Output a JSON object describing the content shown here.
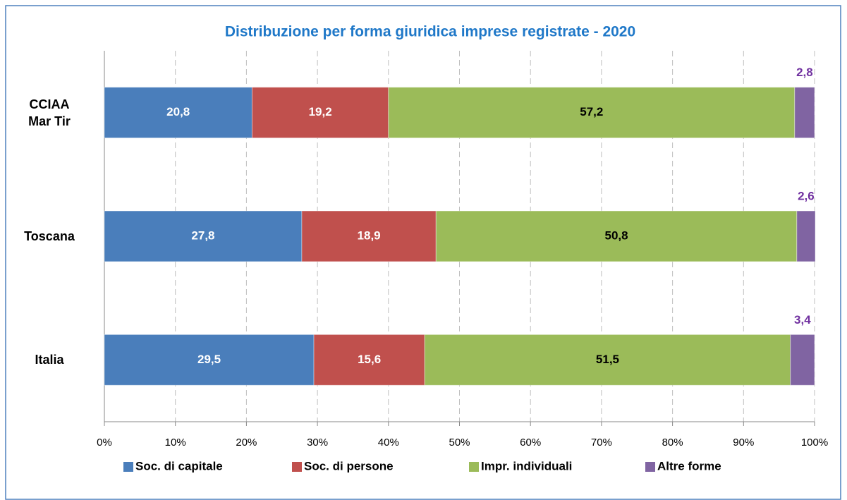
{
  "chart_data": {
    "type": "stacked_bar_horizontal",
    "title": "Distribuzione per forma giuridica imprese registrate - 2020",
    "categories": [
      "CCIAA\nMar Tir",
      "Toscana",
      "Italia"
    ],
    "series": [
      {
        "name": "Soc. di capitale",
        "color": "#4a7ebb",
        "label_color": "#ffffff",
        "values": [
          20.8,
          27.8,
          29.5
        ],
        "value_labels": [
          "20,8",
          "27,8",
          "29,5"
        ]
      },
      {
        "name": "Soc. di persone",
        "color": "#c0504d",
        "label_color": "#ffffff",
        "values": [
          19.2,
          18.9,
          15.6
        ],
        "value_labels": [
          "19,2",
          "18,9",
          "15,6"
        ]
      },
      {
        "name": "Impr. individuali",
        "color": "#9bbb59",
        "label_color": "#000000",
        "values": [
          57.2,
          50.8,
          51.5
        ],
        "value_labels": [
          "57,2",
          "50,8",
          "51,5"
        ]
      },
      {
        "name": "Altre forme",
        "color": "#8064a2",
        "label_color": "#7030a0",
        "values": [
          2.8,
          2.6,
          3.4
        ],
        "value_labels": [
          "2,8",
          "2,6",
          "3,4"
        ]
      }
    ],
    "xlim": [
      0,
      100
    ],
    "xticks": [
      {
        "value": 0,
        "label": "0%"
      },
      {
        "value": 10,
        "label": "10%"
      },
      {
        "value": 20,
        "label": "20%"
      },
      {
        "value": 30,
        "label": "30%"
      },
      {
        "value": 40,
        "label": "40%"
      },
      {
        "value": 50,
        "label": "50%"
      },
      {
        "value": 60,
        "label": "60%"
      },
      {
        "value": 70,
        "label": "70%"
      },
      {
        "value": 80,
        "label": "80%"
      },
      {
        "value": 90,
        "label": "90%"
      },
      {
        "value": 100,
        "label": "100%"
      }
    ],
    "grid": true,
    "legend": "bottom"
  }
}
